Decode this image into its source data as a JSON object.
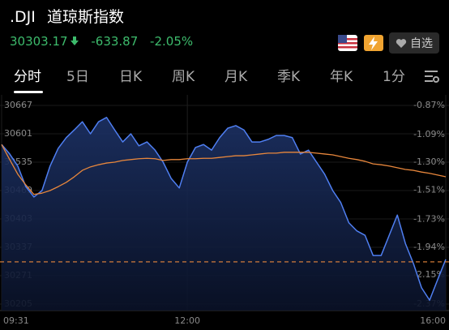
{
  "header": {
    "symbol": ".DJI",
    "name": "道琼斯指数",
    "price": 30303.17,
    "change": -633.87,
    "change_pct": "-2.05%",
    "watch_label": "自选"
  },
  "tabs": [
    "分时",
    "5日",
    "日K",
    "周K",
    "月K",
    "季K",
    "年K",
    "1分"
  ],
  "chart_data": {
    "type": "line",
    "categories": [
      "09:31",
      null,
      null,
      null,
      null,
      null,
      null,
      null,
      null,
      null,
      null,
      null,
      null,
      null,
      null,
      null,
      null,
      null,
      null,
      null,
      null,
      null,
      null,
      "12:00",
      null,
      null,
      null,
      null,
      null,
      null,
      null,
      null,
      null,
      null,
      null,
      null,
      null,
      null,
      null,
      null,
      null,
      null,
      null,
      null,
      null,
      null,
      null,
      null,
      null,
      null,
      null,
      null,
      null,
      null,
      null,
      "16:00"
    ],
    "series": [
      {
        "color": "#4f7ff2",
        "values": [
          30576,
          30554,
          30526,
          30478,
          30454,
          30469,
          30526,
          30567,
          30592,
          30610,
          30629,
          30601,
          30629,
          30639,
          30610,
          30582,
          30601,
          30573,
          30582,
          30563,
          30535,
          30497,
          30475,
          30535,
          30569,
          30576,
          30563,
          30592,
          30614,
          30620,
          30610,
          30582,
          30582,
          30588,
          30597,
          30597,
          30592,
          30554,
          30563,
          30535,
          30507,
          30469,
          30441,
          30394,
          30375,
          30365,
          30318,
          30318,
          30365,
          30412,
          30346,
          30299,
          30243,
          30214,
          30262,
          30309
        ]
      },
      {
        "color": "#e8873c",
        "values": [
          30576,
          30541,
          30507,
          30482,
          30460,
          30463,
          30469,
          30478,
          30488,
          30501,
          30516,
          30524,
          30529,
          30533,
          30535,
          30539,
          30541,
          30543,
          30544,
          30543,
          30539,
          30541,
          30541,
          30543,
          30543,
          30544,
          30544,
          30546,
          30548,
          30550,
          30550,
          30552,
          30554,
          30556,
          30556,
          30558,
          30558,
          30558,
          30558,
          30556,
          30554,
          30552,
          30548,
          30544,
          30541,
          30537,
          30531,
          30529,
          30526,
          30522,
          30518,
          30516,
          30512,
          30509,
          30505,
          30501
        ]
      }
    ],
    "ylim": [
      30205,
      30667
    ],
    "yticks": [
      30205,
      30271,
      30337,
      30403,
      30469,
      30535,
      30601,
      30667
    ],
    "y2lim": [
      -2.37,
      -0.87
    ],
    "y2ticks": [
      {
        "value": -2.37,
        "label": "-2.37%"
      },
      {
        "value": -2.15,
        "label": "-2.15%"
      },
      {
        "value": -1.94,
        "label": "-1.94%"
      },
      {
        "value": -1.73,
        "label": "-1.73%"
      },
      {
        "value": -1.51,
        "label": "-1.51%"
      },
      {
        "value": -1.3,
        "label": "-1.30%"
      },
      {
        "value": -1.09,
        "label": "-1.09%"
      },
      {
        "value": -0.87,
        "label": "-0.87%"
      }
    ],
    "grid": true
  }
}
